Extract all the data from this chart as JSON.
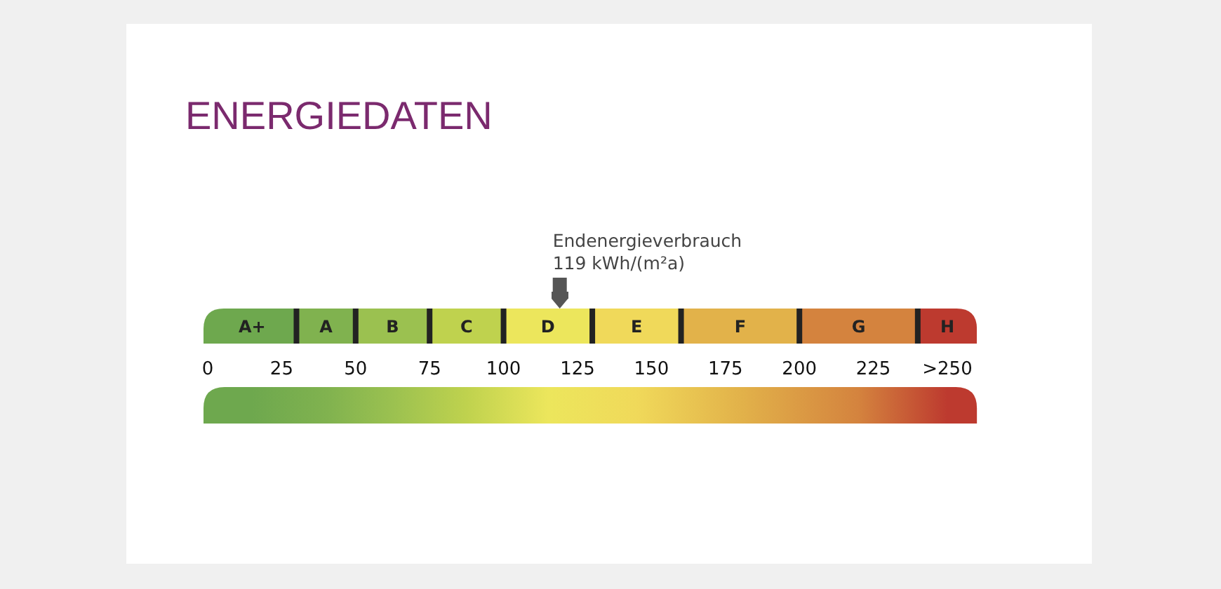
{
  "chart_data": {
    "type": "bar",
    "orientation": "horizontal",
    "stacked": true,
    "title": "ENERGIEDATEN",
    "categories": [
      null
    ],
    "xlim": [
      0,
      260
    ],
    "xticks": [
      0,
      25,
      50,
      75,
      100,
      125,
      150,
      175,
      200,
      225,
      {
        "value": 250,
        "label": ">250"
      }
    ],
    "series": [
      {
        "name": "A+",
        "color": "#6ea84e",
        "values": [
          30
        ]
      },
      {
        "name": "A",
        "color": "#80b24f",
        "values": [
          20
        ]
      },
      {
        "name": "B",
        "color": "#9bc150",
        "values": [
          25
        ]
      },
      {
        "name": "C",
        "color": "#bfd24e",
        "values": [
          25
        ]
      },
      {
        "name": "D",
        "color": "#ece65c",
        "values": [
          30
        ]
      },
      {
        "name": "E",
        "color": "#f0d95a",
        "values": [
          30
        ]
      },
      {
        "name": "F",
        "color": "#e2b24a",
        "values": [
          40
        ]
      },
      {
        "name": "G",
        "color": "#d4833e",
        "values": [
          40
        ]
      },
      {
        "name": "H",
        "color": "#bd3a2f",
        "values": [
          20
        ]
      }
    ],
    "ref_lines": [
      {
        "axis": "x",
        "value": 119,
        "label": "Endenergieverbrauch\n119 kWh/(m²a)"
      }
    ]
  }
}
